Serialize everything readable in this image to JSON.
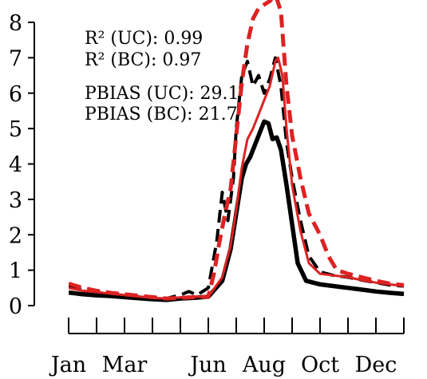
{
  "chart_data": {
    "type": "line",
    "x_unit": "month",
    "ylim": [
      0,
      8
    ],
    "xlim": [
      1,
      13
    ],
    "y_ticks": [
      0,
      1,
      2,
      3,
      4,
      5,
      6,
      7,
      8
    ],
    "y_tick_labels": [
      "0",
      "1",
      "2",
      "3",
      "4",
      "5",
      "6",
      "7",
      "8"
    ],
    "x_ticks": [
      1,
      2,
      3,
      4,
      5,
      6,
      7,
      8,
      9,
      10,
      11,
      12,
      13
    ],
    "x_tick_labels": [
      {
        "x": 1,
        "text": "Jan"
      },
      {
        "x": 3,
        "text": "Mar"
      },
      {
        "x": 6,
        "text": "Jun"
      },
      {
        "x": 8,
        "text": "Aug"
      },
      {
        "x": 10,
        "text": "Oct"
      },
      {
        "x": 12,
        "text": "Dec"
      }
    ],
    "grid": false,
    "annotations": [
      "R² (UC): 0.99",
      "R² (BC): 0.97",
      "PBIAS (UC): 29.1",
      "PBIAS (BC): 21.7"
    ],
    "series": [
      {
        "id": "observed",
        "color": "#000000",
        "dash": "solid",
        "width": 5.5,
        "points": [
          [
            1,
            0.37
          ],
          [
            1.5,
            0.32
          ],
          [
            2,
            0.29
          ],
          [
            2.5,
            0.27
          ],
          [
            3,
            0.24
          ],
          [
            3.5,
            0.21
          ],
          [
            4,
            0.18
          ],
          [
            4.5,
            0.16
          ],
          [
            5,
            0.2
          ],
          [
            5.5,
            0.22
          ],
          [
            6,
            0.25
          ],
          [
            6.5,
            0.7
          ],
          [
            6.8,
            1.6
          ],
          [
            7,
            2.6
          ],
          [
            7.2,
            3.6
          ],
          [
            7.35,
            4.0
          ],
          [
            7.5,
            4.2
          ],
          [
            7.7,
            4.6
          ],
          [
            7.9,
            5.0
          ],
          [
            8.0,
            5.2
          ],
          [
            8.15,
            5.15
          ],
          [
            8.3,
            4.7
          ],
          [
            8.45,
            4.75
          ],
          [
            8.6,
            4.4
          ],
          [
            8.8,
            3.4
          ],
          [
            9,
            2.3
          ],
          [
            9.2,
            1.2
          ],
          [
            9.5,
            0.7
          ],
          [
            10,
            0.6
          ],
          [
            10.5,
            0.55
          ],
          [
            11,
            0.5
          ],
          [
            11.5,
            0.45
          ],
          [
            12,
            0.4
          ],
          [
            12.5,
            0.36
          ],
          [
            13,
            0.33
          ]
        ]
      },
      {
        "id": "uc-simulated",
        "color": "#000000",
        "dash": "dashed",
        "width": 4,
        "points": [
          [
            1,
            0.55
          ],
          [
            1.5,
            0.45
          ],
          [
            2,
            0.4
          ],
          [
            2.5,
            0.35
          ],
          [
            3,
            0.3
          ],
          [
            3.5,
            0.26
          ],
          [
            4,
            0.22
          ],
          [
            4.5,
            0.2
          ],
          [
            5,
            0.3
          ],
          [
            5.3,
            0.4
          ],
          [
            5.6,
            0.3
          ],
          [
            6,
            0.5
          ],
          [
            6.3,
            1.8
          ],
          [
            6.5,
            3.2
          ],
          [
            6.7,
            2.4
          ],
          [
            6.9,
            3.6
          ],
          [
            7.0,
            5.0
          ],
          [
            7.2,
            6.5
          ],
          [
            7.4,
            6.9
          ],
          [
            7.6,
            6.2
          ],
          [
            7.8,
            6.5
          ],
          [
            8.0,
            6.0
          ],
          [
            8.2,
            6.4
          ],
          [
            8.4,
            7.0
          ],
          [
            8.6,
            6.2
          ],
          [
            8.8,
            4.6
          ],
          [
            9.0,
            3.6
          ],
          [
            9.3,
            2.4
          ],
          [
            9.6,
            1.4
          ],
          [
            10,
            0.95
          ],
          [
            10.5,
            0.85
          ],
          [
            11,
            0.8
          ],
          [
            11.5,
            0.72
          ],
          [
            12,
            0.65
          ],
          [
            12.5,
            0.58
          ],
          [
            13,
            0.55
          ]
        ]
      },
      {
        "id": "bc-simulated",
        "color": "#dd2222",
        "dash": "solid",
        "width": 3,
        "points": [
          [
            1,
            0.5
          ],
          [
            1.5,
            0.42
          ],
          [
            2,
            0.38
          ],
          [
            2.5,
            0.34
          ],
          [
            3,
            0.3
          ],
          [
            3.5,
            0.26
          ],
          [
            4,
            0.22
          ],
          [
            4.5,
            0.2
          ],
          [
            5,
            0.23
          ],
          [
            5.5,
            0.25
          ],
          [
            6,
            0.25
          ],
          [
            6.5,
            0.8
          ],
          [
            6.8,
            1.7
          ],
          [
            7,
            2.7
          ],
          [
            7.2,
            3.9
          ],
          [
            7.4,
            4.7
          ],
          [
            7.6,
            5.0
          ],
          [
            7.8,
            5.4
          ],
          [
            8.0,
            5.8
          ],
          [
            8.2,
            6.2
          ],
          [
            8.4,
            6.9
          ],
          [
            8.5,
            7.0
          ],
          [
            8.65,
            6.5
          ],
          [
            8.8,
            5.0
          ],
          [
            9.0,
            3.4
          ],
          [
            9.3,
            2.1
          ],
          [
            9.6,
            1.2
          ],
          [
            10,
            0.9
          ],
          [
            10.5,
            0.85
          ],
          [
            11,
            0.8
          ],
          [
            11.5,
            0.72
          ],
          [
            12,
            0.65
          ],
          [
            12.5,
            0.6
          ],
          [
            13,
            0.55
          ]
        ]
      },
      {
        "id": "bc-dashed",
        "color": "#dd2222",
        "dash": "dashed",
        "width": 5,
        "points": [
          [
            1,
            0.62
          ],
          [
            1.5,
            0.5
          ],
          [
            2,
            0.42
          ],
          [
            2.5,
            0.36
          ],
          [
            3,
            0.32
          ],
          [
            3.5,
            0.28
          ],
          [
            4,
            0.24
          ],
          [
            4.5,
            0.2
          ],
          [
            5,
            0.22
          ],
          [
            5.5,
            0.24
          ],
          [
            6,
            0.25
          ],
          [
            6.2,
            0.9
          ],
          [
            6.4,
            1.8
          ],
          [
            6.6,
            2.6
          ],
          [
            6.8,
            3.3
          ],
          [
            7,
            4.8
          ],
          [
            7.2,
            6.3
          ],
          [
            7.4,
            7.4
          ],
          [
            7.6,
            8.1
          ],
          [
            7.8,
            8.4
          ],
          [
            8.0,
            8.5
          ],
          [
            8.2,
            8.6
          ],
          [
            8.4,
            8.8
          ],
          [
            8.6,
            8.3
          ],
          [
            8.8,
            6.2
          ],
          [
            9.0,
            4.8
          ],
          [
            9.3,
            3.6
          ],
          [
            9.6,
            2.6
          ],
          [
            10,
            2.0
          ],
          [
            10.3,
            1.4
          ],
          [
            10.6,
            1.0
          ],
          [
            11,
            0.9
          ],
          [
            11.5,
            0.8
          ],
          [
            12,
            0.7
          ],
          [
            12.5,
            0.62
          ],
          [
            13,
            0.58
          ]
        ]
      }
    ]
  }
}
